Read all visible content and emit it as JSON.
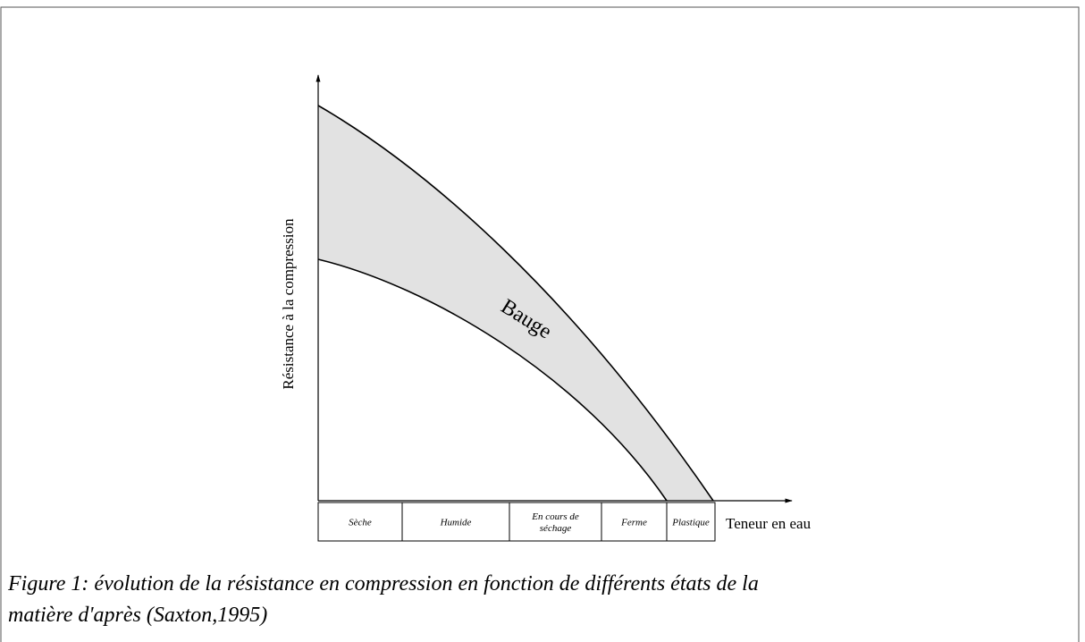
{
  "figure": {
    "y_axis_label": "Résistance à la compression",
    "x_axis_label": "Teneur en eau",
    "region_label": "Bauge",
    "states": [
      [
        "Sèche"
      ],
      [
        "Humide"
      ],
      [
        "En cours de",
        "séchage"
      ],
      [
        "Ferme"
      ],
      [
        "Plastique"
      ]
    ],
    "caption": [
      "Figure 1: évolution de la résistance en compression en fonction de différents états de la",
      "matière d'après (Saxton,1995)"
    ]
  }
}
